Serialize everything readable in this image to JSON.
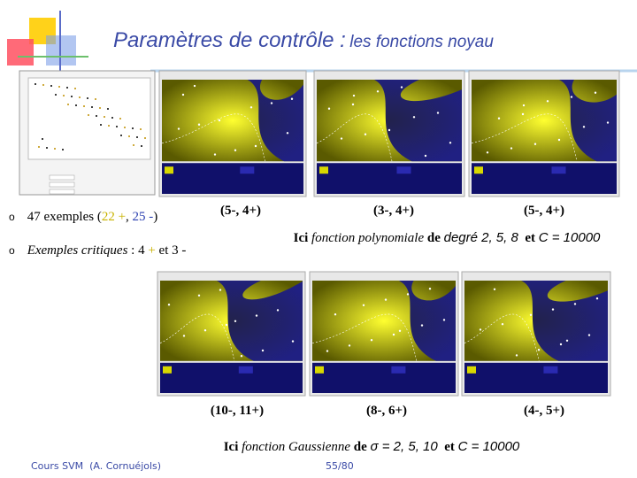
{
  "header": {
    "title": "Paramètres de contrôle :",
    "subtitle": "les fonctions noyau"
  },
  "bullets": [
    {
      "segments": [
        "47 exemples (",
        "22 +",
        ", ",
        "25 -",
        ")"
      ]
    },
    {
      "segments": [
        "Exemples critiques",
        " : 4 ",
        "+",
        " et 3 -"
      ]
    }
  ],
  "polynomial": {
    "captions": [
      "(5-, 4+)",
      "(3-, 4+)",
      "(5-, 4+)"
    ],
    "note": [
      "Ici ",
      "fonction polynomiale",
      " de ",
      "degré 2, 5, 8",
      "  et ",
      "C = 10000"
    ]
  },
  "gaussian": {
    "captions": [
      "(10-, 11+)",
      "(8-, 6+)",
      "(4-, 5+)"
    ],
    "note": [
      "Ici ",
      "fonction Gaussienne",
      " de ",
      "σ = 2, 5, 10",
      "  et ",
      "C = 10000"
    ]
  },
  "footer": {
    "course": "Cours SVM  (A. Cornuéjols)",
    "page": "55/80"
  }
}
